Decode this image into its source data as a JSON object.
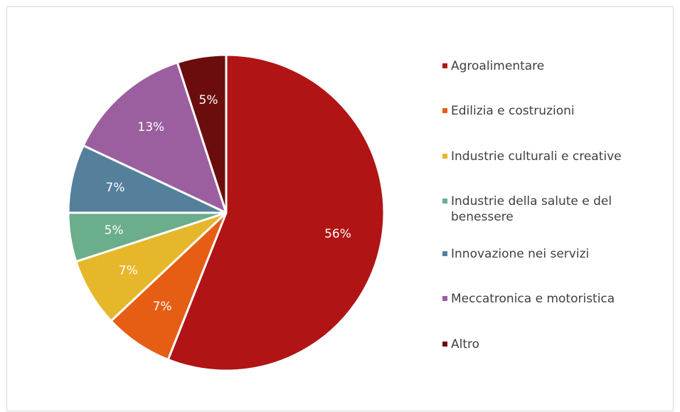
{
  "chart_data": {
    "type": "pie",
    "title": "",
    "slices": [
      {
        "name": "Agroalimentare",
        "value": 56,
        "label": "56%",
        "color": "#b01414"
      },
      {
        "name": "Edilizia e costruzioni",
        "value": 7,
        "label": "7%",
        "color": "#e55e14"
      },
      {
        "name": "Industrie culturali e creative",
        "value": 7,
        "label": "7%",
        "color": "#e6b72a"
      },
      {
        "name": "Industrie della salute e del benessere",
        "value": 5,
        "label": "5%",
        "color": "#6aae8c"
      },
      {
        "name": "Innovazione nei servizi",
        "value": 7,
        "label": "7%",
        "color": "#55809c"
      },
      {
        "name": "Meccatronica e motoristica",
        "value": 13,
        "label": "13%",
        "color": "#9b5f9f"
      },
      {
        "name": "Altro",
        "value": 5,
        "label": "5%",
        "color": "#6b0d0d"
      }
    ],
    "legend_position": "right",
    "start_angle": "top, clockwise"
  }
}
